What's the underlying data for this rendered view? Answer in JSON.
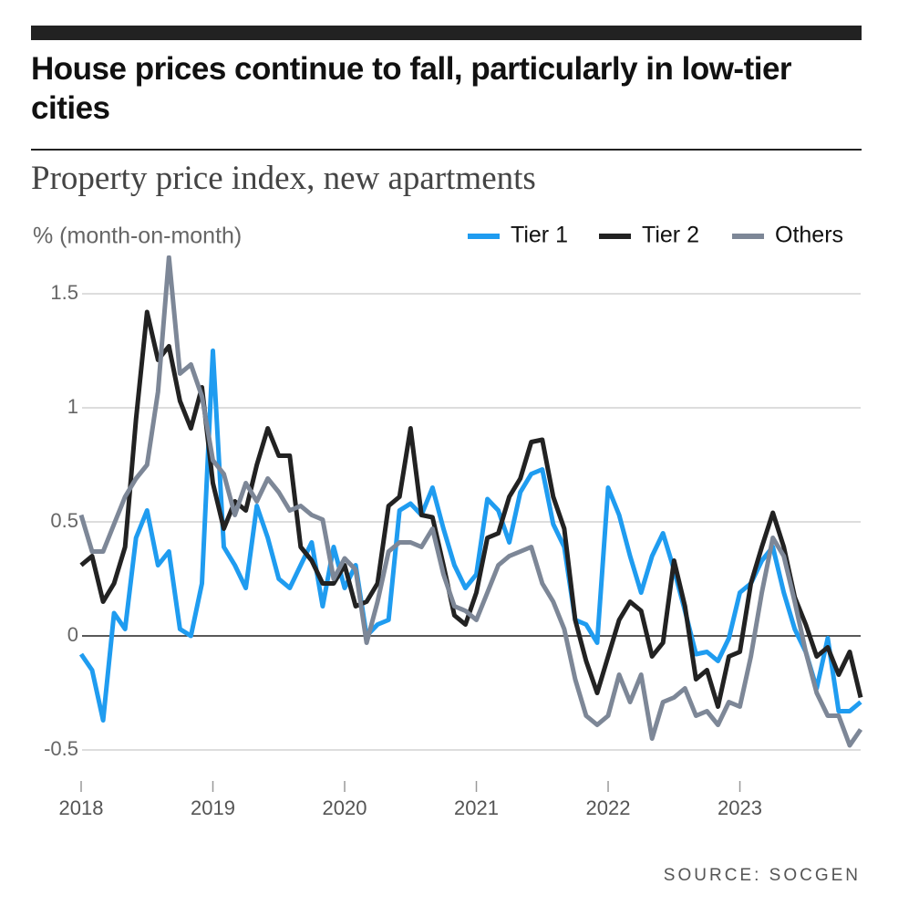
{
  "chart_data": {
    "type": "line",
    "title": "House prices continue to fall, particularly in low-tier cities",
    "subtitle": "Property price index, new apartments",
    "y_label": "% (month-on-month)",
    "source": "SOURCE: SOCGEN",
    "legend": "top-right",
    "grid": true,
    "ylim": [
      -0.6,
      1.7
    ],
    "yticks": [
      -0.5,
      0,
      0.5,
      1,
      1.5
    ],
    "categories": [
      "2018",
      null,
      null,
      null,
      null,
      null,
      null,
      null,
      null,
      null,
      null,
      null,
      "2019",
      null,
      null,
      null,
      null,
      null,
      null,
      null,
      null,
      null,
      null,
      null,
      "2020",
      null,
      null,
      null,
      null,
      null,
      null,
      null,
      null,
      null,
      null,
      null,
      "2021",
      null,
      null,
      null,
      null,
      null,
      null,
      null,
      null,
      null,
      null,
      null,
      "2022",
      null,
      null,
      null,
      null,
      null,
      null,
      null,
      null,
      null,
      null,
      null,
      "2023",
      null,
      null,
      null,
      null,
      null,
      null,
      null,
      null,
      null,
      null,
      null
    ],
    "series": [
      {
        "name": "Tier 1",
        "color": "#1f9cf0",
        "values": [
          -0.08,
          -0.15,
          -0.37,
          0.1,
          0.03,
          0.43,
          0.55,
          0.31,
          0.37,
          0.03,
          0.0,
          0.23,
          1.25,
          0.39,
          0.31,
          0.21,
          0.57,
          0.43,
          0.25,
          0.21,
          0.31,
          0.41,
          0.13,
          0.39,
          0.21,
          0.31,
          0.0,
          0.05,
          0.07,
          0.55,
          0.58,
          0.53,
          0.65,
          0.47,
          0.31,
          0.21,
          0.27,
          0.6,
          0.55,
          0.41,
          0.63,
          0.71,
          0.73,
          0.49,
          0.39,
          0.07,
          0.05,
          -0.03,
          0.65,
          0.53,
          0.35,
          0.19,
          0.35,
          0.45,
          0.29,
          0.11,
          -0.08,
          -0.07,
          -0.11,
          -0.01,
          0.19,
          0.23,
          0.33,
          0.39,
          0.19,
          0.03,
          -0.07,
          -0.23,
          -0.01,
          -0.33,
          -0.33,
          -0.29
        ]
      },
      {
        "name": "Tier 2",
        "color": "#222222",
        "values": [
          0.31,
          0.35,
          0.15,
          0.23,
          0.39,
          0.95,
          1.42,
          1.21,
          1.27,
          1.03,
          0.91,
          1.09,
          0.67,
          0.47,
          0.59,
          0.55,
          0.75,
          0.91,
          0.79,
          0.79,
          0.39,
          0.33,
          0.23,
          0.23,
          0.31,
          0.13,
          0.15,
          0.23,
          0.57,
          0.61,
          0.91,
          0.53,
          0.52,
          0.31,
          0.09,
          0.05,
          0.19,
          0.43,
          0.45,
          0.61,
          0.69,
          0.85,
          0.86,
          0.61,
          0.47,
          0.07,
          -0.11,
          -0.25,
          -0.09,
          0.07,
          0.15,
          0.11,
          -0.09,
          -0.03,
          0.33,
          0.13,
          -0.19,
          -0.15,
          -0.31,
          -0.09,
          -0.07,
          0.23,
          0.39,
          0.54,
          0.39,
          0.17,
          0.05,
          -0.09,
          -0.05,
          -0.17,
          -0.07,
          -0.27
        ]
      },
      {
        "name": "Others",
        "color": "#7d8797",
        "values": [
          0.53,
          0.37,
          0.37,
          0.49,
          0.61,
          0.69,
          0.75,
          1.07,
          1.66,
          1.15,
          1.19,
          1.05,
          0.77,
          0.71,
          0.53,
          0.67,
          0.59,
          0.69,
          0.63,
          0.55,
          0.57,
          0.53,
          0.51,
          0.25,
          0.34,
          0.29,
          -0.03,
          0.15,
          0.37,
          0.41,
          0.41,
          0.39,
          0.47,
          0.27,
          0.13,
          0.11,
          0.07,
          0.19,
          0.31,
          0.35,
          0.37,
          0.39,
          0.23,
          0.15,
          0.03,
          -0.19,
          -0.35,
          -0.39,
          -0.35,
          -0.17,
          -0.29,
          -0.17,
          -0.45,
          -0.29,
          -0.27,
          -0.23,
          -0.35,
          -0.33,
          -0.39,
          -0.29,
          -0.31,
          -0.09,
          0.19,
          0.43,
          0.35,
          0.15,
          -0.07,
          -0.25,
          -0.35,
          -0.35,
          -0.48,
          -0.41
        ]
      }
    ]
  }
}
